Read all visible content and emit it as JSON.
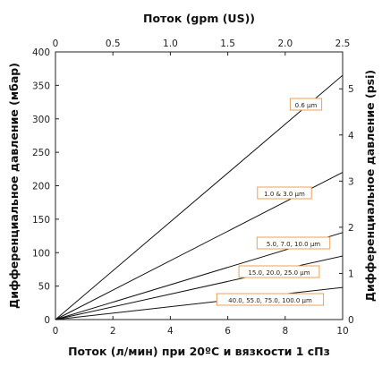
{
  "chart_data": {
    "type": "line",
    "title": "",
    "xlabel": "Поток (л/мин) при 20ºC и вязкости 1 сПз",
    "x2label": "Поток (gpm (US))",
    "ylabel": "Дифференциальное давление (мбар)",
    "y2label": "Дифференциальное давление (psi)",
    "xlim": [
      0,
      10
    ],
    "ylim": [
      0,
      400
    ],
    "x2lim": [
      0,
      2.5
    ],
    "y2lim": [
      0,
      5.8
    ],
    "x_ticks": [
      "0",
      "2",
      "4",
      "6",
      "8",
      "10"
    ],
    "y_ticks": [
      "0",
      "50",
      "100",
      "150",
      "200",
      "250",
      "300",
      "350",
      "400"
    ],
    "x2_ticks": [
      "0",
      "0.5",
      "1.0",
      "1.5",
      "2.0",
      "2.5"
    ],
    "y2_ticks": [
      "0",
      "1",
      "2",
      "3",
      "4",
      "5"
    ],
    "grid": false,
    "label_color": "#e8a15a",
    "series": [
      {
        "name": "0.6 µm",
        "x": [
          0,
          10
        ],
        "y": [
          0,
          365
        ]
      },
      {
        "name": "1.0 & 3.0 µm",
        "x": [
          0,
          10
        ],
        "y": [
          0,
          220
        ]
      },
      {
        "name": "5.0, 7.0, 10.0 µm",
        "x": [
          0,
          10
        ],
        "y": [
          0,
          130
        ]
      },
      {
        "name": "15.0, 20.0, 25.0 µm",
        "x": [
          0,
          10
        ],
        "y": [
          0,
          95
        ]
      },
      {
        "name": "40.0, 55.0, 75.0, 100.0 µm",
        "x": [
          0,
          10
        ],
        "y": [
          0,
          48
        ]
      }
    ]
  }
}
